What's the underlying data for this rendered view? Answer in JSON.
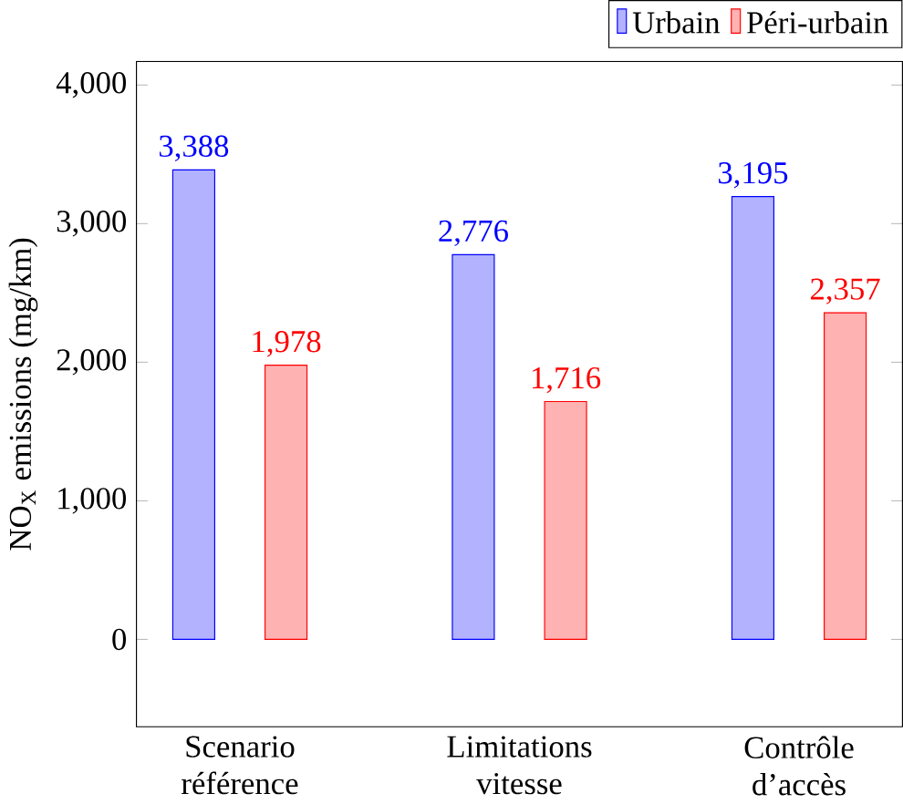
{
  "chart_data": {
    "type": "bar",
    "ylabel": "NO$_{X}$ emissions (mg/km)",
    "categories": [
      "Scenario référence",
      "Limitations vitesse",
      "Contrôle d’accès"
    ],
    "series": [
      {
        "name": "Urbain",
        "color": "#0000ff",
        "values": [
          3388,
          2776,
          3195
        ],
        "value_labels": [
          "3,388",
          "2,776",
          "3,195"
        ]
      },
      {
        "name": "Péri-urbain",
        "color": "#ff0000",
        "values": [
          1978,
          1716,
          2357
        ],
        "value_labels": [
          "1,978",
          "1,716",
          "2,357"
        ]
      }
    ],
    "ylim": [
      -630,
      4170
    ],
    "yticks": [
      0,
      {
        "value": 1000,
        "label": "1,000"
      },
      {
        "value": 2000,
        "label": "2,000"
      },
      {
        "value": 3000,
        "label": "3,000"
      },
      {
        "value": 4000,
        "label": "4,000"
      }
    ],
    "grid": false,
    "legend": "top right"
  }
}
